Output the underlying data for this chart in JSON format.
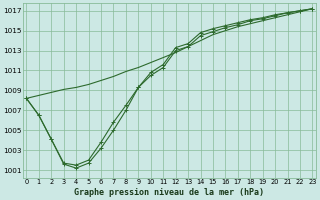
{
  "title": "Graphe pression niveau de la mer (hPa)",
  "bg_color": "#cce8e4",
  "grid_color": "#88bb99",
  "line_color": "#2d6a2d",
  "spine_color": "#88bb99",
  "xlim": [
    -0.3,
    23.3
  ],
  "ylim": [
    1000.2,
    1017.8
  ],
  "ytick_vals": [
    1001,
    1003,
    1005,
    1007,
    1009,
    1011,
    1013,
    1015,
    1017
  ],
  "xtick_vals": [
    0,
    1,
    2,
    3,
    4,
    5,
    6,
    7,
    8,
    9,
    10,
    11,
    12,
    13,
    14,
    15,
    16,
    17,
    18,
    19,
    20,
    21,
    22,
    23
  ],
  "s1_x": [
    0,
    1,
    2,
    3,
    4,
    5,
    6,
    7,
    8,
    9,
    10,
    11,
    12,
    13,
    14,
    15,
    16,
    17,
    18,
    19,
    20,
    21,
    22,
    23
  ],
  "s1_y": [
    1008.2,
    1006.5,
    1004.1,
    1001.6,
    1001.2,
    1001.7,
    1003.2,
    1005.0,
    1007.0,
    1009.3,
    1010.5,
    1011.3,
    1013.0,
    1013.4,
    1014.5,
    1014.9,
    1015.3,
    1015.6,
    1016.0,
    1016.2,
    1016.5,
    1016.8,
    1017.0,
    1017.2
  ],
  "s2_x": [
    0,
    1,
    2,
    3,
    4,
    5,
    6,
    7,
    8,
    9,
    10,
    11,
    12,
    13,
    14,
    15,
    16,
    17,
    18,
    19,
    20,
    21,
    22,
    23
  ],
  "s2_y": [
    1008.2,
    1006.5,
    1004.1,
    1001.7,
    1001.5,
    1002.0,
    1003.8,
    1005.8,
    1007.5,
    1009.3,
    1010.8,
    1011.6,
    1013.3,
    1013.7,
    1014.8,
    1015.2,
    1015.5,
    1015.8,
    1016.1,
    1016.3,
    1016.6,
    1016.8,
    1017.0,
    1017.2
  ],
  "s3_x": [
    0,
    1,
    2,
    3,
    4,
    5,
    6,
    7,
    8,
    9,
    10,
    11,
    12,
    13,
    14,
    15,
    16,
    17,
    18,
    19,
    20,
    21,
    22,
    23
  ],
  "s3_y": [
    1008.2,
    1008.5,
    1008.8,
    1009.1,
    1009.3,
    1009.6,
    1010.0,
    1010.4,
    1010.9,
    1011.3,
    1011.8,
    1012.3,
    1012.8,
    1013.4,
    1014.0,
    1014.6,
    1015.0,
    1015.4,
    1015.7,
    1016.0,
    1016.3,
    1016.6,
    1016.9,
    1017.2
  ],
  "xlabel_fontsize": 6.0,
  "ytick_fontsize": 5.2,
  "xtick_fontsize": 4.8
}
